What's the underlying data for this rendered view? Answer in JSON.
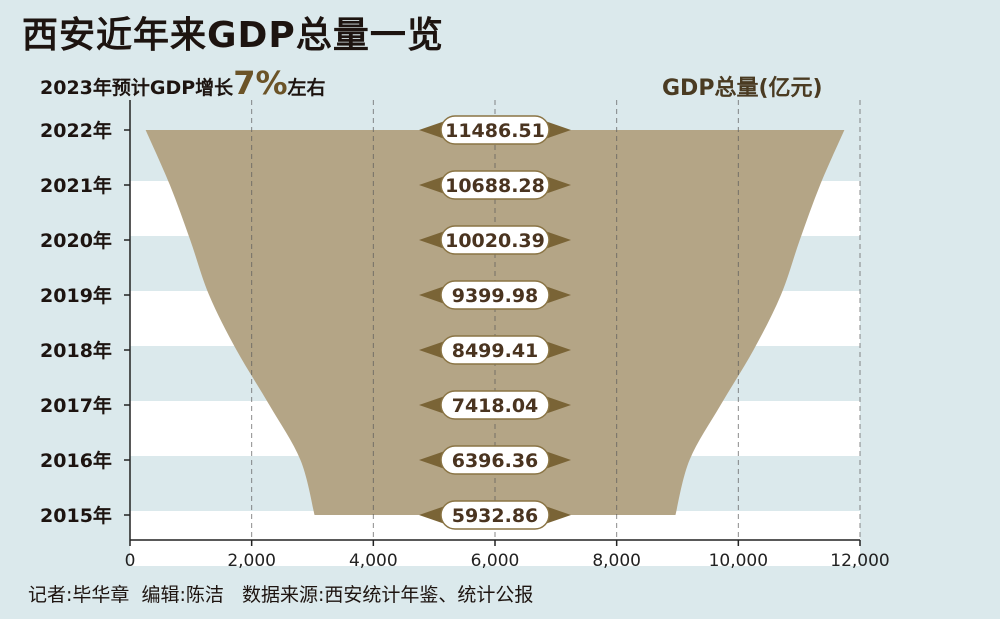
{
  "title": "西安近年来GDP总量一览",
  "subtitle": {
    "prefix": "2023年预计GDP增长",
    "percent": "7%",
    "suffix": "左右"
  },
  "unit_label": "GDP总量(亿元)",
  "credit": "记者:毕华章  编辑:陈洁   数据来源:西安统计年鉴、统计公报",
  "colors": {
    "area": "#b4a586",
    "label_border": "#8a7444",
    "label_text": "#4a3420",
    "background_light": "#dbe9ec",
    "stripe_white": "#ffffff"
  },
  "chart_data": {
    "type": "area",
    "orientation": "horizontal-symmetric",
    "categories": [
      "2022年",
      "2021年",
      "2020年",
      "2019年",
      "2018年",
      "2017年",
      "2016年",
      "2015年"
    ],
    "values": [
      11486.51,
      10688.28,
      10020.39,
      9399.98,
      8499.41,
      7418.04,
      6396.36,
      5932.86
    ],
    "value_labels": [
      "11486.51",
      "10688.28",
      "10020.39",
      "9399.98",
      "8499.41",
      "7418.04",
      "6396.36",
      "5932.86"
    ],
    "x_ticks": [
      "0",
      "2,000",
      "4,000",
      "6,000",
      "8,000",
      "10,000",
      "12,000"
    ],
    "xlim": [
      0,
      12000
    ],
    "grid": "vertical-dashed"
  }
}
